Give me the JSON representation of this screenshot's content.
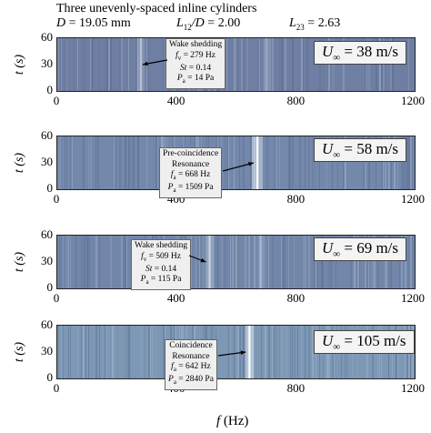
{
  "header": {
    "line1": "Three unevenly-spaced inline cylinders",
    "d_label": "D",
    "d_value": " = 19.05 mm",
    "l12_label": "L",
    "l12_sub": "12",
    "l12_rest": "/D",
    "l12_value": " = 2.00",
    "l23_label": "L",
    "l23_sub": "23",
    "l23_value": " = 2.63"
  },
  "axes": {
    "ylabel": "t (s)",
    "xlabel_italic": "f",
    "xlabel_rest": " (Hz)",
    "yticks": [
      "60",
      "30",
      "0"
    ],
    "xticks": [
      "0",
      "400",
      "800",
      "1200"
    ]
  },
  "chart_data": [
    {
      "type": "heatmap",
      "x": "f (Hz)",
      "y": "t (s)",
      "xlim": [
        0,
        1200
      ],
      "ylim": [
        0,
        60
      ],
      "u_label": "U",
      "u_sub": "∞",
      "u_value": " = 38 m/s",
      "annotation": {
        "lines": [
          {
            "text": "Wake shedding"
          },
          {
            "sym": "f",
            "sub": "v",
            "val": " = 279 Hz"
          },
          {
            "sym": "St",
            "val": " =  0.14"
          },
          {
            "sym": "P",
            "sub": "a",
            "val": " = 14 Pa"
          }
        ],
        "target_f": 279
      },
      "features": [
        {
          "f": 279,
          "strength": 0.45,
          "width": 4
        },
        {
          "f": 700,
          "strength": 0.25,
          "width": 4
        }
      ],
      "bg": "#6f7fa3"
    },
    {
      "type": "heatmap",
      "x": "f (Hz)",
      "y": "t (s)",
      "xlim": [
        0,
        1200
      ],
      "ylim": [
        0,
        60
      ],
      "u_label": "U",
      "u_sub": "∞",
      "u_value": " = 58 m/s",
      "annotation": {
        "lines": [
          {
            "text": "Pre-coincidence"
          },
          {
            "text": "Resonance"
          },
          {
            "sym": "f",
            "sub": "a",
            "val": " = 668 Hz"
          },
          {
            "sym": "P",
            "sub": "a",
            "val": " = 1509 Pa"
          }
        ],
        "target_f": 668
      },
      "features": [
        {
          "f": 668,
          "strength": 0.95,
          "width": 6
        },
        {
          "f": 350,
          "strength": 0.2,
          "width": 3
        }
      ],
      "bg": "#7388ab"
    },
    {
      "type": "heatmap",
      "x": "f (Hz)",
      "y": "t (s)",
      "xlim": [
        0,
        1200
      ],
      "ylim": [
        0,
        60
      ],
      "u_label": "U",
      "u_sub": "∞",
      "u_value": " = 69 m/s",
      "annotation": {
        "lines": [
          {
            "text": "Wake shedding"
          },
          {
            "sym": "f",
            "sub": "v",
            "val": " = 509 Hz"
          },
          {
            "sym": "St",
            "val": " =  0.14"
          },
          {
            "sym": "P",
            "sub": "a",
            "val": " = 115 Pa"
          }
        ],
        "target_f": 509
      },
      "features": [
        {
          "f": 509,
          "strength": 0.55,
          "width": 5
        },
        {
          "f": 680,
          "strength": 0.3,
          "width": 4
        }
      ],
      "bg": "#7186a8"
    },
    {
      "type": "heatmap",
      "x": "f (Hz)",
      "y": "t (s)",
      "xlim": [
        0,
        1200
      ],
      "ylim": [
        0,
        60
      ],
      "u_label": "U",
      "u_sub": "∞",
      "u_value": " = 105 m/s",
      "annotation": {
        "lines": [
          {
            "text": "Coincidence"
          },
          {
            "text": "Resonance"
          },
          {
            "sym": "f",
            "sub": "a",
            "val": " = 642 Hz"
          },
          {
            "sym": "P",
            "sub": "a",
            "val": " = 2840 Pa"
          }
        ],
        "target_f": 642
      },
      "features": [
        {
          "f": 642,
          "strength": 1.0,
          "width": 5
        }
      ],
      "bg": "#7c98b4"
    }
  ]
}
